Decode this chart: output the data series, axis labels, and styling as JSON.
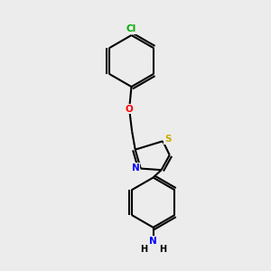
{
  "background_color": "#ececec",
  "bond_color": "#000000",
  "bond_width": 1.5,
  "atom_colors": {
    "Cl": "#00aa00",
    "O": "#ff0000",
    "N": "#0000ff",
    "S": "#ccaa00",
    "H": "#000000"
  }
}
